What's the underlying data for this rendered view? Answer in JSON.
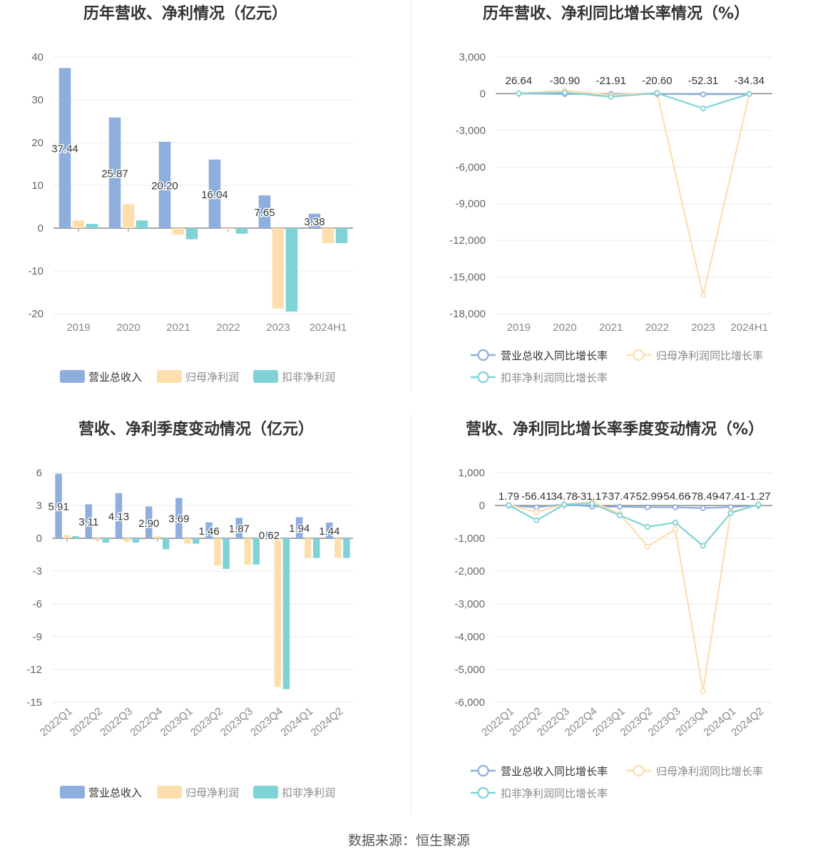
{
  "colors": {
    "revenue": "#8eaedd",
    "net": "#fddfae",
    "deducted": "#7fd3d6",
    "grid": "#e9e9ef",
    "axis": "#888888",
    "text": "#333333"
  },
  "source": "数据来源：恒生聚源",
  "chart_data": [
    {
      "type": "bar",
      "title": "历年营收、净利情况（亿元）",
      "categories": [
        "2019",
        "2020",
        "2021",
        "2022",
        "2023",
        "2024H1"
      ],
      "series": [
        {
          "name": "营业总收入",
          "values": [
            37.44,
            25.87,
            20.2,
            16.04,
            7.65,
            3.38
          ],
          "labels": [
            "37.44",
            "25.87",
            "20.20",
            "16.04",
            "7.65",
            "3.38"
          ]
        },
        {
          "name": "归母净利润",
          "values": [
            1.8,
            5.6,
            -1.5,
            -0.2,
            -18.8,
            -3.5
          ]
        },
        {
          "name": "扣非净利润",
          "values": [
            1.0,
            1.8,
            -2.6,
            -1.3,
            -19.5,
            -3.5
          ]
        }
      ],
      "yticks": [
        -20,
        -10,
        0,
        10,
        20,
        30,
        40
      ],
      "ytick_labels": [
        "-20",
        "-10",
        "0",
        "10",
        "20",
        "30",
        "40"
      ],
      "ylim": [
        -20,
        40
      ],
      "legend": [
        "营业总收入",
        "归母净利润",
        "扣非净利润"
      ]
    },
    {
      "type": "line",
      "title": "历年营收、净利同比增长率情况（%）",
      "categories": [
        "2019",
        "2020",
        "2021",
        "2022",
        "2023",
        "2024H1"
      ],
      "series": [
        {
          "name": "营业总收入同比增长率",
          "values": [
            26.64,
            -30.9,
            -21.91,
            -20.6,
            -52.31,
            -34.34
          ],
          "labels": [
            "26.64",
            "-30.90",
            "-21.91",
            "-20.60",
            "-52.31",
            "-34.34"
          ]
        },
        {
          "name": "归母净利润同比增长率",
          "values": [
            30,
            250,
            -120,
            90,
            -16500,
            -30
          ]
        },
        {
          "name": "扣非净利润同比增长率",
          "values": [
            20,
            100,
            -250,
            50,
            -1200,
            -20
          ]
        }
      ],
      "yticks": [
        -18000,
        -15000,
        -12000,
        -9000,
        -6000,
        -3000,
        0,
        3000
      ],
      "ytick_labels": [
        "-18,000",
        "-15,000",
        "-12,000",
        "-9,000",
        "-6,000",
        "-3,000",
        "0",
        "3,000"
      ],
      "ylim": [
        -18000,
        3000
      ],
      "legend": [
        "营业总收入同比增长率",
        "归母净利润同比增长率",
        "扣非净利润同比增长率"
      ]
    },
    {
      "type": "bar",
      "title": "营收、净利季度变动情况（亿元）",
      "categories": [
        "2022Q1",
        "2022Q2",
        "2022Q3",
        "2022Q4",
        "2023Q1",
        "2023Q2",
        "2023Q3",
        "2023Q4",
        "2024Q1",
        "2024Q2"
      ],
      "series": [
        {
          "name": "营业总收入",
          "values": [
            5.91,
            3.11,
            4.13,
            2.9,
            3.69,
            1.46,
            1.87,
            0.62,
            1.94,
            1.44
          ],
          "labels": [
            "5.91",
            "3.11",
            "4.13",
            "2.90",
            "3.69",
            "1.46",
            "1.87",
            "0.62",
            "1.94",
            "1.44"
          ]
        },
        {
          "name": "归母净利润",
          "values": [
            0.3,
            -0.2,
            -0.3,
            0.2,
            -0.5,
            -2.5,
            -2.4,
            -13.6,
            -1.8,
            -1.8
          ]
        },
        {
          "name": "扣非净利润",
          "values": [
            0.2,
            -0.4,
            -0.4,
            -1.0,
            -0.5,
            -2.8,
            -2.4,
            -13.8,
            -1.8,
            -1.8
          ]
        }
      ],
      "yticks": [
        -15,
        -12,
        -9,
        -6,
        -3,
        0,
        3,
        6
      ],
      "ytick_labels": [
        "-15",
        "-12",
        "-9",
        "-6",
        "-3",
        "0",
        "3",
        "6"
      ],
      "ylim": [
        -15,
        6
      ],
      "legend": [
        "营业总收入",
        "归母净利润",
        "扣非净利润"
      ]
    },
    {
      "type": "line",
      "title": "营收、净利同比增长率季度变动情况（%）",
      "categories": [
        "2022Q1",
        "2022Q2",
        "2022Q3",
        "2022Q4",
        "2023Q1",
        "2023Q2",
        "2023Q3",
        "2023Q4",
        "2024Q1",
        "2024Q2"
      ],
      "series": [
        {
          "name": "营业总收入同比增长率",
          "values": [
            1.79,
            -56.41,
            34.78,
            -31.17,
            -37.47,
            -52.99,
            -54.66,
            -78.49,
            -47.41,
            -1.27
          ],
          "labels": [
            "1.79",
            "-56.41",
            "34.78",
            "-31.17",
            "-37.47",
            "-52.99",
            "-54.66",
            "-78.49",
            "-47.41",
            "-1.27"
          ]
        },
        {
          "name": "归母净利润同比增长率",
          "values": [
            20,
            -200,
            40,
            120,
            -250,
            -1250,
            -730,
            -5650,
            -200,
            20
          ]
        },
        {
          "name": "扣非净利润同比增长率",
          "values": [
            10,
            -450,
            30,
            60,
            -300,
            -650,
            -520,
            -1230,
            -230,
            30
          ]
        }
      ],
      "yticks": [
        -6000,
        -5000,
        -4000,
        -3000,
        -2000,
        -1000,
        0,
        1000
      ],
      "ytick_labels": [
        "-6,000",
        "-5,000",
        "-4,000",
        "-3,000",
        "-2,000",
        "-1,000",
        "0",
        "1,000"
      ],
      "ylim": [
        -6000,
        1000
      ],
      "legend": [
        "营业总收入同比增长率",
        "归母净利润同比增长率",
        "扣非净利润同比增长率"
      ]
    }
  ]
}
